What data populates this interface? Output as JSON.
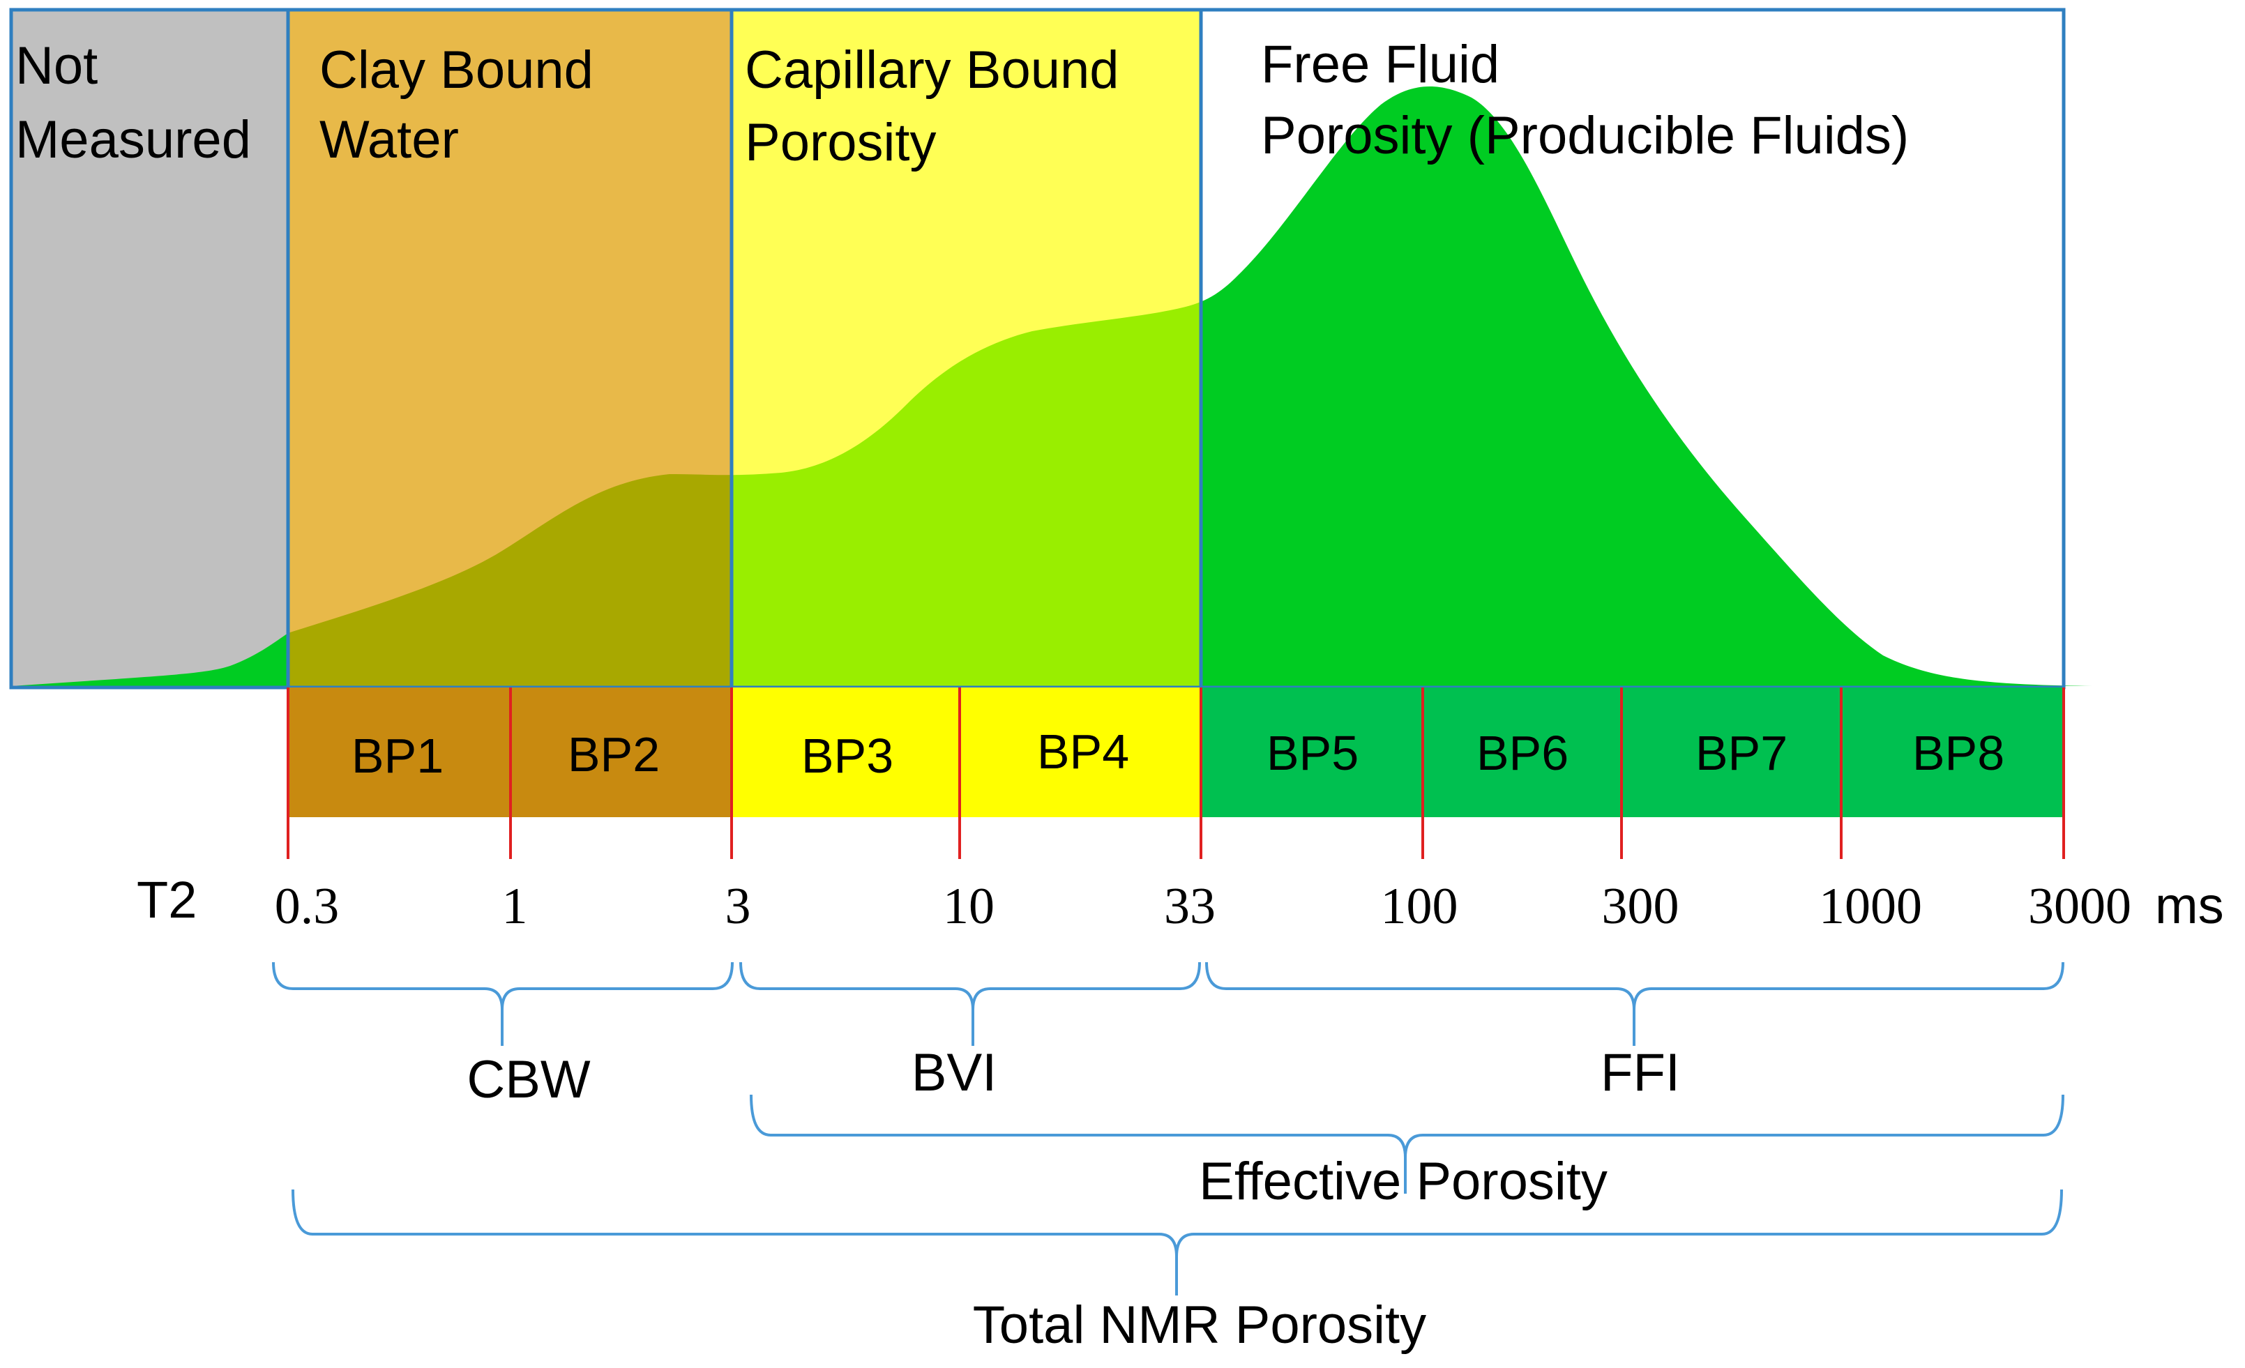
{
  "zones": {
    "not_measured": {
      "line1": "Not",
      "line2": "Measured"
    },
    "clay_bound": {
      "line1": "Clay Bound",
      "line2": "Water"
    },
    "capillary_bound": {
      "line1": "Capillary Bound",
      "line2": "Porosity"
    },
    "free_fluid": {
      "line1": "Free Fluid",
      "line2": "Porosity (Producible Fluids)"
    }
  },
  "bins": [
    {
      "label": "BP1"
    },
    {
      "label": "BP2"
    },
    {
      "label": "BP3"
    },
    {
      "label": "BP4"
    },
    {
      "label": "BP5"
    },
    {
      "label": "BP6"
    },
    {
      "label": "BP7"
    },
    {
      "label": "BP8"
    }
  ],
  "axis": {
    "name": "T2",
    "unit": "ms",
    "ticks": [
      "0.3",
      "1",
      "3",
      "10",
      "33",
      "100",
      "300",
      "1000",
      "3000"
    ]
  },
  "groups": {
    "cbw": "CBW",
    "bvi": "BVI",
    "ffi": "FFI",
    "effective": "Effective Porosity",
    "total": "Total NMR Porosity"
  },
  "colors": {
    "not_measured_fill": "#c0c0c0",
    "clay_fill": "#e6b33a",
    "capillary_fill": "#ffff55",
    "curve_fill": "#00cc22",
    "box_border": "#2f7fc0",
    "bracket": "#4a9ad8",
    "red_tick": "#e02020",
    "bp_clay": "#c88a10",
    "bp_capillary": "#ffff00",
    "bp_free": "#00c050"
  }
}
